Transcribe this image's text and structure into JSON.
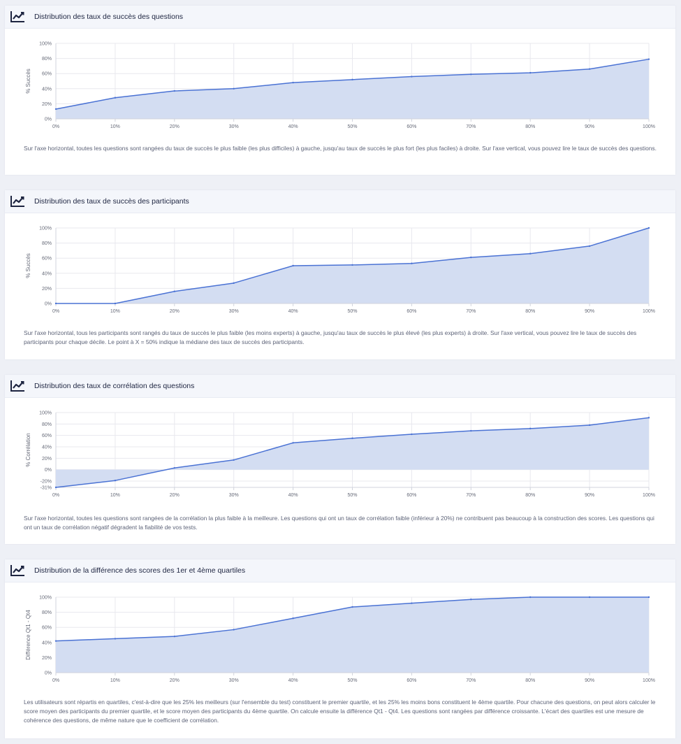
{
  "theme": {
    "line": "#4a72d4",
    "fill": "#d3ddf2",
    "grid": "#e8e8ee",
    "axis": "#d0d3dc"
  },
  "icon_name": "line-chart-icon",
  "chart_data": [
    {
      "type": "area",
      "title": "Distribution des taux de succès des questions",
      "xlabel": "",
      "ylabel": "% Succès",
      "x": [
        0,
        10,
        20,
        30,
        40,
        50,
        60,
        70,
        80,
        90,
        100
      ],
      "values": [
        13,
        28,
        37,
        40,
        48,
        52,
        56,
        59,
        61,
        66,
        79
      ],
      "ylim": [
        0,
        100
      ],
      "xticks": [
        "0%",
        "10%",
        "20%",
        "30%",
        "40%",
        "50%",
        "60%",
        "70%",
        "80%",
        "90%",
        "100%"
      ],
      "yticks": [
        {
          "v": 0,
          "label": "0%"
        },
        {
          "v": 20,
          "label": "20%"
        },
        {
          "v": 40,
          "label": "40%"
        },
        {
          "v": 60,
          "label": "60%"
        },
        {
          "v": 80,
          "label": "80%"
        },
        {
          "v": 100,
          "label": "100%"
        }
      ],
      "grid": true,
      "description": "Sur l'axe horizontal, toutes les questions sont rangées du taux de succès le plus faible (les plus difficiles) à gauche, jusqu'au taux de succès le plus fort (les plus faciles) à droite. Sur l'axe vertical, vous pouvez lire le taux de succès des questions."
    },
    {
      "type": "area",
      "title": "Distribution des taux de succès des participants",
      "xlabel": "",
      "ylabel": "% Succès",
      "x": [
        0,
        10,
        20,
        30,
        40,
        50,
        60,
        70,
        80,
        90,
        100
      ],
      "values": [
        0,
        0,
        16,
        27,
        50,
        51,
        53,
        61,
        66,
        76,
        100
      ],
      "ylim": [
        0,
        100
      ],
      "xticks": [
        "0%",
        "10%",
        "20%",
        "30%",
        "40%",
        "50%",
        "60%",
        "70%",
        "80%",
        "90%",
        "100%"
      ],
      "yticks": [
        {
          "v": 0,
          "label": "0%"
        },
        {
          "v": 20,
          "label": "20%"
        },
        {
          "v": 40,
          "label": "40%"
        },
        {
          "v": 60,
          "label": "60%"
        },
        {
          "v": 80,
          "label": "80%"
        },
        {
          "v": 100,
          "label": "100%"
        }
      ],
      "grid": true,
      "description": "Sur l'axe horizontal, tous les participants sont rangés du taux de succès le plus faible (les moins experts) à gauche, jusqu'au taux de succès le plus élevé (les plus experts) à droite. Sur l'axe vertical, vous pouvez lire le taux de succès des participants pour chaque décile. Le point à X = 50% indique la médiane des taux de succès des participants."
    },
    {
      "type": "area",
      "title": "Distribution des taux de corrélation des questions",
      "xlabel": "",
      "ylabel": "% Corrélation",
      "x": [
        0,
        10,
        20,
        30,
        40,
        50,
        60,
        70,
        80,
        90,
        100
      ],
      "values": [
        -31,
        -19,
        3,
        17,
        47,
        55,
        62,
        68,
        72,
        78,
        91
      ],
      "ylim": [
        -31,
        100
      ],
      "xticks": [
        "0%",
        "10%",
        "20%",
        "30%",
        "40%",
        "50%",
        "60%",
        "70%",
        "80%",
        "90%",
        "100%"
      ],
      "yticks": [
        {
          "v": -31,
          "label": "-31%"
        },
        {
          "v": -20,
          "label": "-20%"
        },
        {
          "v": 0,
          "label": "0%"
        },
        {
          "v": 20,
          "label": "20%"
        },
        {
          "v": 40,
          "label": "40%"
        },
        {
          "v": 60,
          "label": "60%"
        },
        {
          "v": 80,
          "label": "80%"
        },
        {
          "v": 100,
          "label": "100%"
        }
      ],
      "grid": true,
      "description": "Sur l'axe horizontal, toutes les questions sont rangées de la corrélation la plus faible à la meilleure. Les questions qui ont un taux de corrélation faible (inférieur à 20%) ne contribuent pas beaucoup à la construction des scores. Les questions qui ont un taux de corrélation négatif dégradent la fiabilité de vos tests."
    },
    {
      "type": "area",
      "title": "Distribution de la différence des scores des 1er et 4ème quartiles",
      "xlabel": "",
      "ylabel": "Différence Qt1 - Qt4",
      "x": [
        0,
        10,
        20,
        30,
        40,
        50,
        60,
        70,
        80,
        90,
        100
      ],
      "values": [
        42,
        45,
        48,
        57,
        72,
        87,
        92,
        97,
        100,
        100,
        100
      ],
      "ylim": [
        0,
        100
      ],
      "xticks": [
        "0%",
        "10%",
        "20%",
        "30%",
        "40%",
        "50%",
        "60%",
        "70%",
        "80%",
        "90%",
        "100%"
      ],
      "yticks": [
        {
          "v": 0,
          "label": "0%"
        },
        {
          "v": 20,
          "label": "20%"
        },
        {
          "v": 40,
          "label": "40%"
        },
        {
          "v": 60,
          "label": "60%"
        },
        {
          "v": 80,
          "label": "80%"
        },
        {
          "v": 100,
          "label": "100%"
        }
      ],
      "grid": true,
      "description": "Les utilisateurs sont répartis en quartiles, c'est-à-dire que les 25% les meilleurs (sur l'ensemble du test) constituent le premier quartile, et les 25% les moins bons constituent le 4ème quartile. Pour chacune des questions, on peut alors calculer le score moyen des participants du premier quartile, et le score moyen des participants du 4ème quartile. On calcule ensuite la différence Qt1 - Qt4. Les questions sont rangées par différence croissante. L'écart des quartiles est une mesure de cohérence des questions, de même nature que le coefficient de corrélation."
    }
  ]
}
